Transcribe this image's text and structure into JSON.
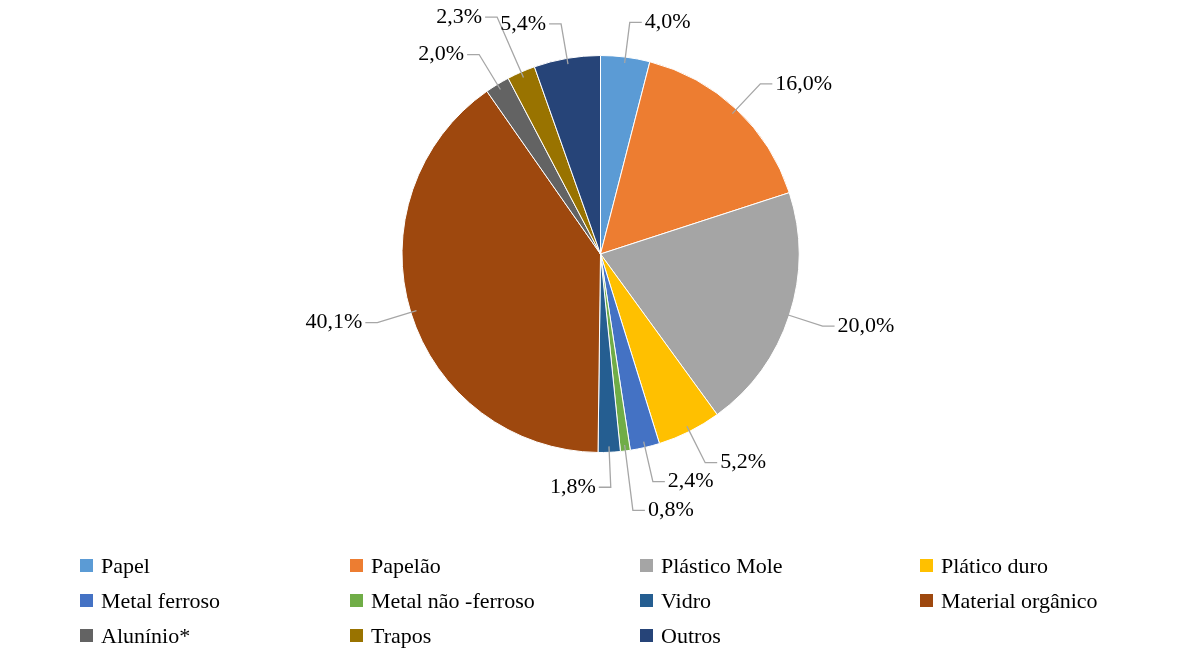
{
  "chart_data": {
    "type": "pie",
    "categories": [
      "Papel",
      "Papelão",
      "Plástico Mole",
      "Plático duro",
      "Metal ferroso",
      "Metal não -ferroso",
      "Vidro",
      "Material orgânico",
      "Alunínio*",
      "Trapos",
      "Outros"
    ],
    "values": [
      4.0,
      16.0,
      20.0,
      5.2,
      2.4,
      0.8,
      1.8,
      40.1,
      2.0,
      2.3,
      5.4
    ],
    "value_labels": [
      "4,0%",
      "16,0%",
      "20,0%",
      "5,2%",
      "2,4%",
      "0,8%",
      "1,8%",
      "40,1%",
      "2,0%",
      "2,3%",
      "5,4%"
    ],
    "colors": [
      "#5b9bd5",
      "#ed7d31",
      "#a5a5a5",
      "#ffc000",
      "#4472c4",
      "#70ad47",
      "#255e91",
      "#9e480e",
      "#636363",
      "#997300",
      "#264478"
    ],
    "legend": "bottom"
  }
}
